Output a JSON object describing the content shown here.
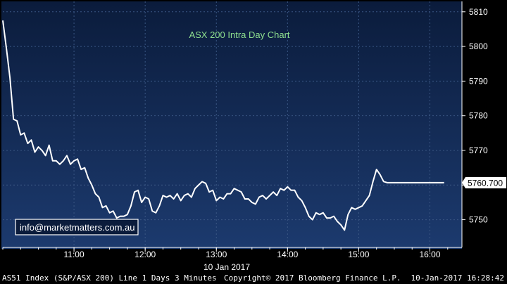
{
  "chart_data": {
    "type": "line",
    "title": "ASX 200 Intra Day Chart",
    "xlabel": "10 Jan 2017",
    "ylabel": "",
    "ylim": [
      5742,
      5813
    ],
    "xlim": [
      10.0,
      16.45
    ],
    "y_ticks": [
      5750,
      5760,
      5770,
      5780,
      5790,
      5800,
      5810
    ],
    "x_ticks": [
      {
        "value": 11.0,
        "label": "11:00"
      },
      {
        "value": 12.0,
        "label": "12:00"
      },
      {
        "value": 13.0,
        "label": "13:00"
      },
      {
        "value": 14.0,
        "label": "14:00"
      },
      {
        "value": 15.0,
        "label": "15:00"
      },
      {
        "value": 16.0,
        "label": "16:00"
      }
    ],
    "grid": true,
    "last_value_label": "5760.700",
    "series": [
      {
        "color": "#ffffff",
        "x": [
          10.0,
          10.05,
          10.1,
          10.15,
          10.2,
          10.25,
          10.3,
          10.35,
          10.4,
          10.45,
          10.5,
          10.55,
          10.6,
          10.65,
          10.7,
          10.75,
          10.8,
          10.85,
          10.9,
          10.95,
          11.0,
          11.05,
          11.1,
          11.15,
          11.2,
          11.25,
          11.3,
          11.35,
          11.4,
          11.45,
          11.5,
          11.55,
          11.6,
          11.65,
          11.7,
          11.75,
          11.8,
          11.85,
          11.9,
          11.95,
          12.0,
          12.05,
          12.1,
          12.15,
          12.2,
          12.25,
          12.3,
          12.35,
          12.4,
          12.45,
          12.5,
          12.55,
          12.6,
          12.65,
          12.7,
          12.75,
          12.8,
          12.85,
          12.9,
          12.95,
          13.0,
          13.05,
          13.1,
          13.15,
          13.2,
          13.25,
          13.3,
          13.35,
          13.4,
          13.45,
          13.5,
          13.55,
          13.6,
          13.65,
          13.7,
          13.75,
          13.8,
          13.85,
          13.9,
          13.95,
          14.0,
          14.05,
          14.1,
          14.15,
          14.2,
          14.25,
          14.3,
          14.35,
          14.4,
          14.45,
          14.5,
          14.55,
          14.6,
          14.65,
          14.7,
          14.75,
          14.8,
          14.85,
          14.9,
          14.95,
          15.0,
          15.05,
          15.1,
          15.15,
          15.2,
          15.25,
          15.3,
          15.35,
          15.4,
          15.45,
          15.5,
          15.55,
          15.6,
          15.65,
          15.7,
          15.75,
          15.8,
          15.85,
          15.9,
          15.95,
          16.0,
          16.05,
          16.1,
          16.15,
          16.2
        ],
        "values": [
          5807.5,
          5799.5,
          5791,
          5779,
          5778.5,
          5774.5,
          5775,
          5772,
          5773,
          5769.5,
          5771,
          5770,
          5768.5,
          5771.5,
          5767,
          5767,
          5766,
          5767,
          5768.5,
          5766,
          5767,
          5767.5,
          5764.5,
          5765,
          5762,
          5760,
          5757.5,
          5756.5,
          5753.5,
          5754,
          5752,
          5752.5,
          5750.5,
          5751,
          5751,
          5751.5,
          5754,
          5758,
          5758.5,
          5755,
          5756.5,
          5756,
          5752.5,
          5752,
          5754,
          5757,
          5756.5,
          5757,
          5756,
          5757.5,
          5755.5,
          5757,
          5757.5,
          5756.5,
          5759,
          5760,
          5761,
          5760.5,
          5758,
          5758.5,
          5755.5,
          5756.5,
          5756,
          5757.5,
          5757.5,
          5759,
          5758.5,
          5758,
          5756,
          5756,
          5755,
          5754.5,
          5756.5,
          5757,
          5756,
          5757,
          5758,
          5757,
          5759,
          5758.5,
          5759.5,
          5758.5,
          5758.5,
          5756.5,
          5755.5,
          5753.5,
          5751,
          5750,
          5752,
          5751.5,
          5752,
          5750.5,
          5750.5,
          5751,
          5749.5,
          5748.5,
          5747,
          5751.5,
          5753.5,
          5753,
          5753.5,
          5754,
          5755.5,
          5757,
          5761,
          5764.5,
          5763,
          5761,
          5760.7,
          5760.7,
          5760.7,
          5760.7,
          5760.7,
          5760.7,
          5760.7,
          5760.7,
          5760.7,
          5760.7,
          5760.7,
          5760.7,
          5760.7,
          5760.7,
          5760.7,
          5760.7,
          5760.7
        ]
      }
    ]
  },
  "watermark": {
    "text": "info@marketmatters.com.au"
  },
  "footer": {
    "left_text": "AS51 Index (S&P/ASX 200) Line 1 Days 3 Minutes",
    "center_text": "Copyright© 2017 Bloomberg Finance L.P.",
    "right_text": "10-Jan-2017 16:28:42"
  },
  "colors": {
    "background": "#000000",
    "plot_background_top": "#0b1c3c",
    "plot_background_bottom": "#1c3a6e",
    "grid": "#3a5683",
    "line": "#ffffff",
    "title": "#8fe08f",
    "axis_text": "#ffffff",
    "footer_text": "#ffffff"
  }
}
